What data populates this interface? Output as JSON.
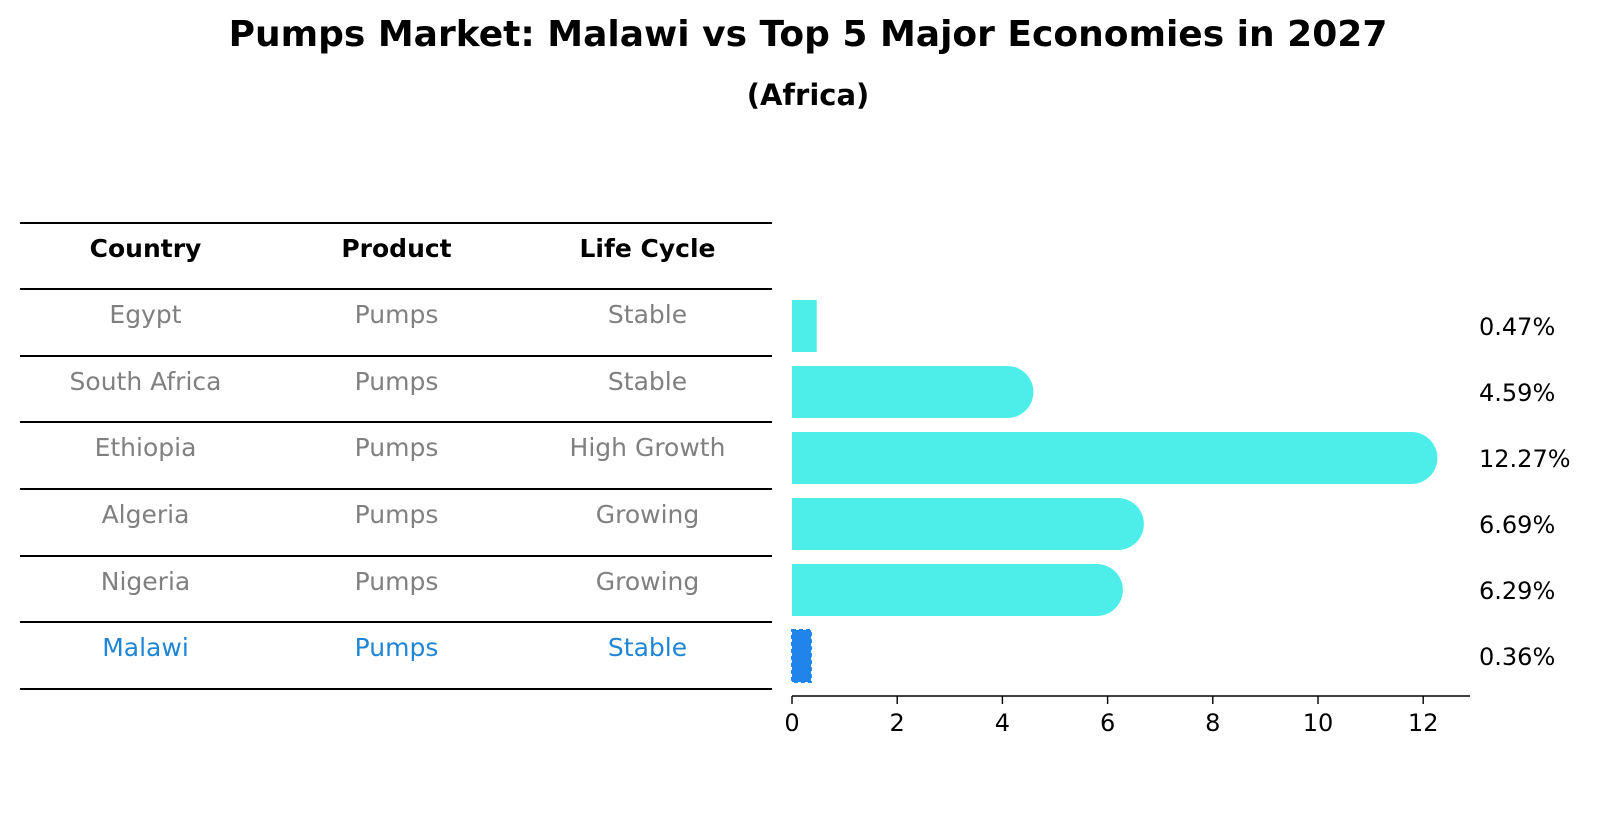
{
  "title": "Pumps Market: Malawi vs Top 5 Major Economies in 2027",
  "subtitle": "(Africa)",
  "table": {
    "headers": [
      "Country",
      "Product",
      "Life Cycle"
    ],
    "rows": [
      {
        "country": "Egypt",
        "product": "Pumps",
        "life_cycle": "Stable",
        "highlight": false
      },
      {
        "country": "South Africa",
        "product": "Pumps",
        "life_cycle": "Stable",
        "highlight": false
      },
      {
        "country": "Ethiopia",
        "product": "Pumps",
        "life_cycle": "High Growth",
        "highlight": false
      },
      {
        "country": "Algeria",
        "product": "Pumps",
        "life_cycle": "Growing",
        "highlight": false
      },
      {
        "country": "Nigeria",
        "product": "Pumps",
        "life_cycle": "Growing",
        "highlight": false
      },
      {
        "country": "Malawi",
        "product": "Pumps",
        "life_cycle": "Stable",
        "highlight": true
      }
    ]
  },
  "chart_data": {
    "type": "bar",
    "orientation": "horizontal",
    "categories": [
      "Egypt",
      "South Africa",
      "Ethiopia",
      "Algeria",
      "Nigeria",
      "Malawi"
    ],
    "values": [
      0.47,
      4.59,
      12.27,
      6.69,
      6.29,
      0.36
    ],
    "value_labels": [
      "0.47%",
      "4.59%",
      "12.27%",
      "6.69%",
      "6.29%",
      "0.36%"
    ],
    "xticks": [
      0,
      2,
      4,
      6,
      8,
      10,
      12
    ],
    "xlim": [
      0,
      12.9
    ],
    "xlabel": "",
    "ylabel": "",
    "colors": {
      "default": "#4deeea",
      "highlight": "#1f85ea"
    }
  }
}
